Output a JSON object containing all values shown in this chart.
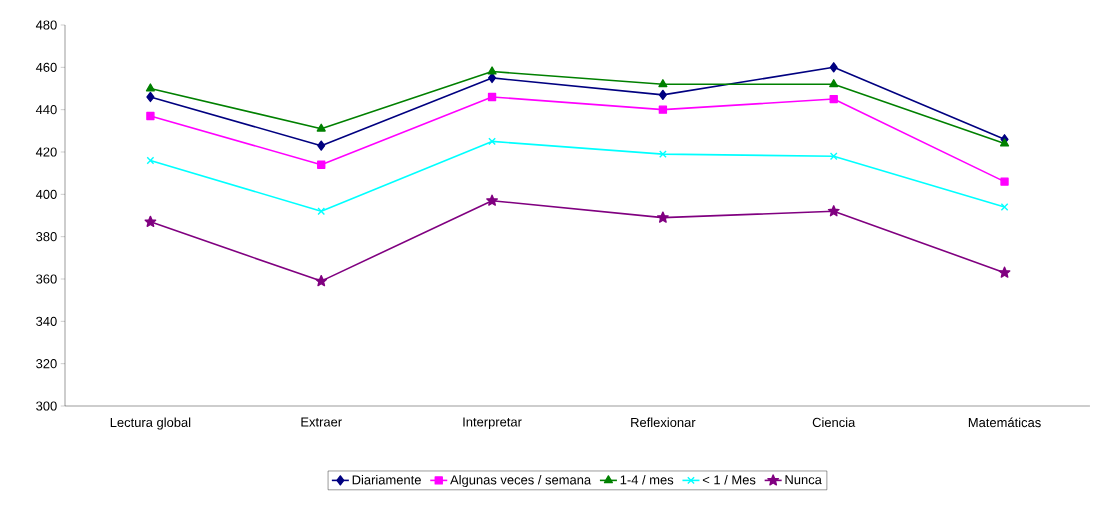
{
  "chart_data": {
    "type": "line",
    "categories": [
      "Lectura global",
      "Extraer",
      "Interpretar",
      "Reflexionar",
      "Ciencia",
      "Matemáticas"
    ],
    "series": [
      {
        "name": "Diariamente",
        "color": "#000080",
        "marker": "diamond",
        "values": [
          446,
          423,
          455,
          447,
          460,
          426
        ]
      },
      {
        "name": "Algunas veces / semana",
        "color": "#ff00ff",
        "marker": "square",
        "values": [
          437,
          414,
          446,
          440,
          445,
          406
        ]
      },
      {
        "name": "1-4 / mes",
        "color": "#008000",
        "marker": "triangle",
        "values": [
          450,
          431,
          458,
          452,
          452,
          424
        ]
      },
      {
        "name": "< 1 / Mes",
        "color": "#00ffff",
        "marker": "cross",
        "values": [
          416,
          392,
          425,
          419,
          418,
          394
        ]
      },
      {
        "name": "Nunca",
        "color": "#800080",
        "marker": "star",
        "values": [
          387,
          359,
          397,
          389,
          392,
          363
        ]
      }
    ],
    "ylim": [
      300,
      480
    ],
    "yticks": [
      300,
      320,
      340,
      360,
      380,
      400,
      420,
      440,
      460,
      480
    ],
    "grid": false,
    "legend": "bottom",
    "line_style": "solid"
  }
}
